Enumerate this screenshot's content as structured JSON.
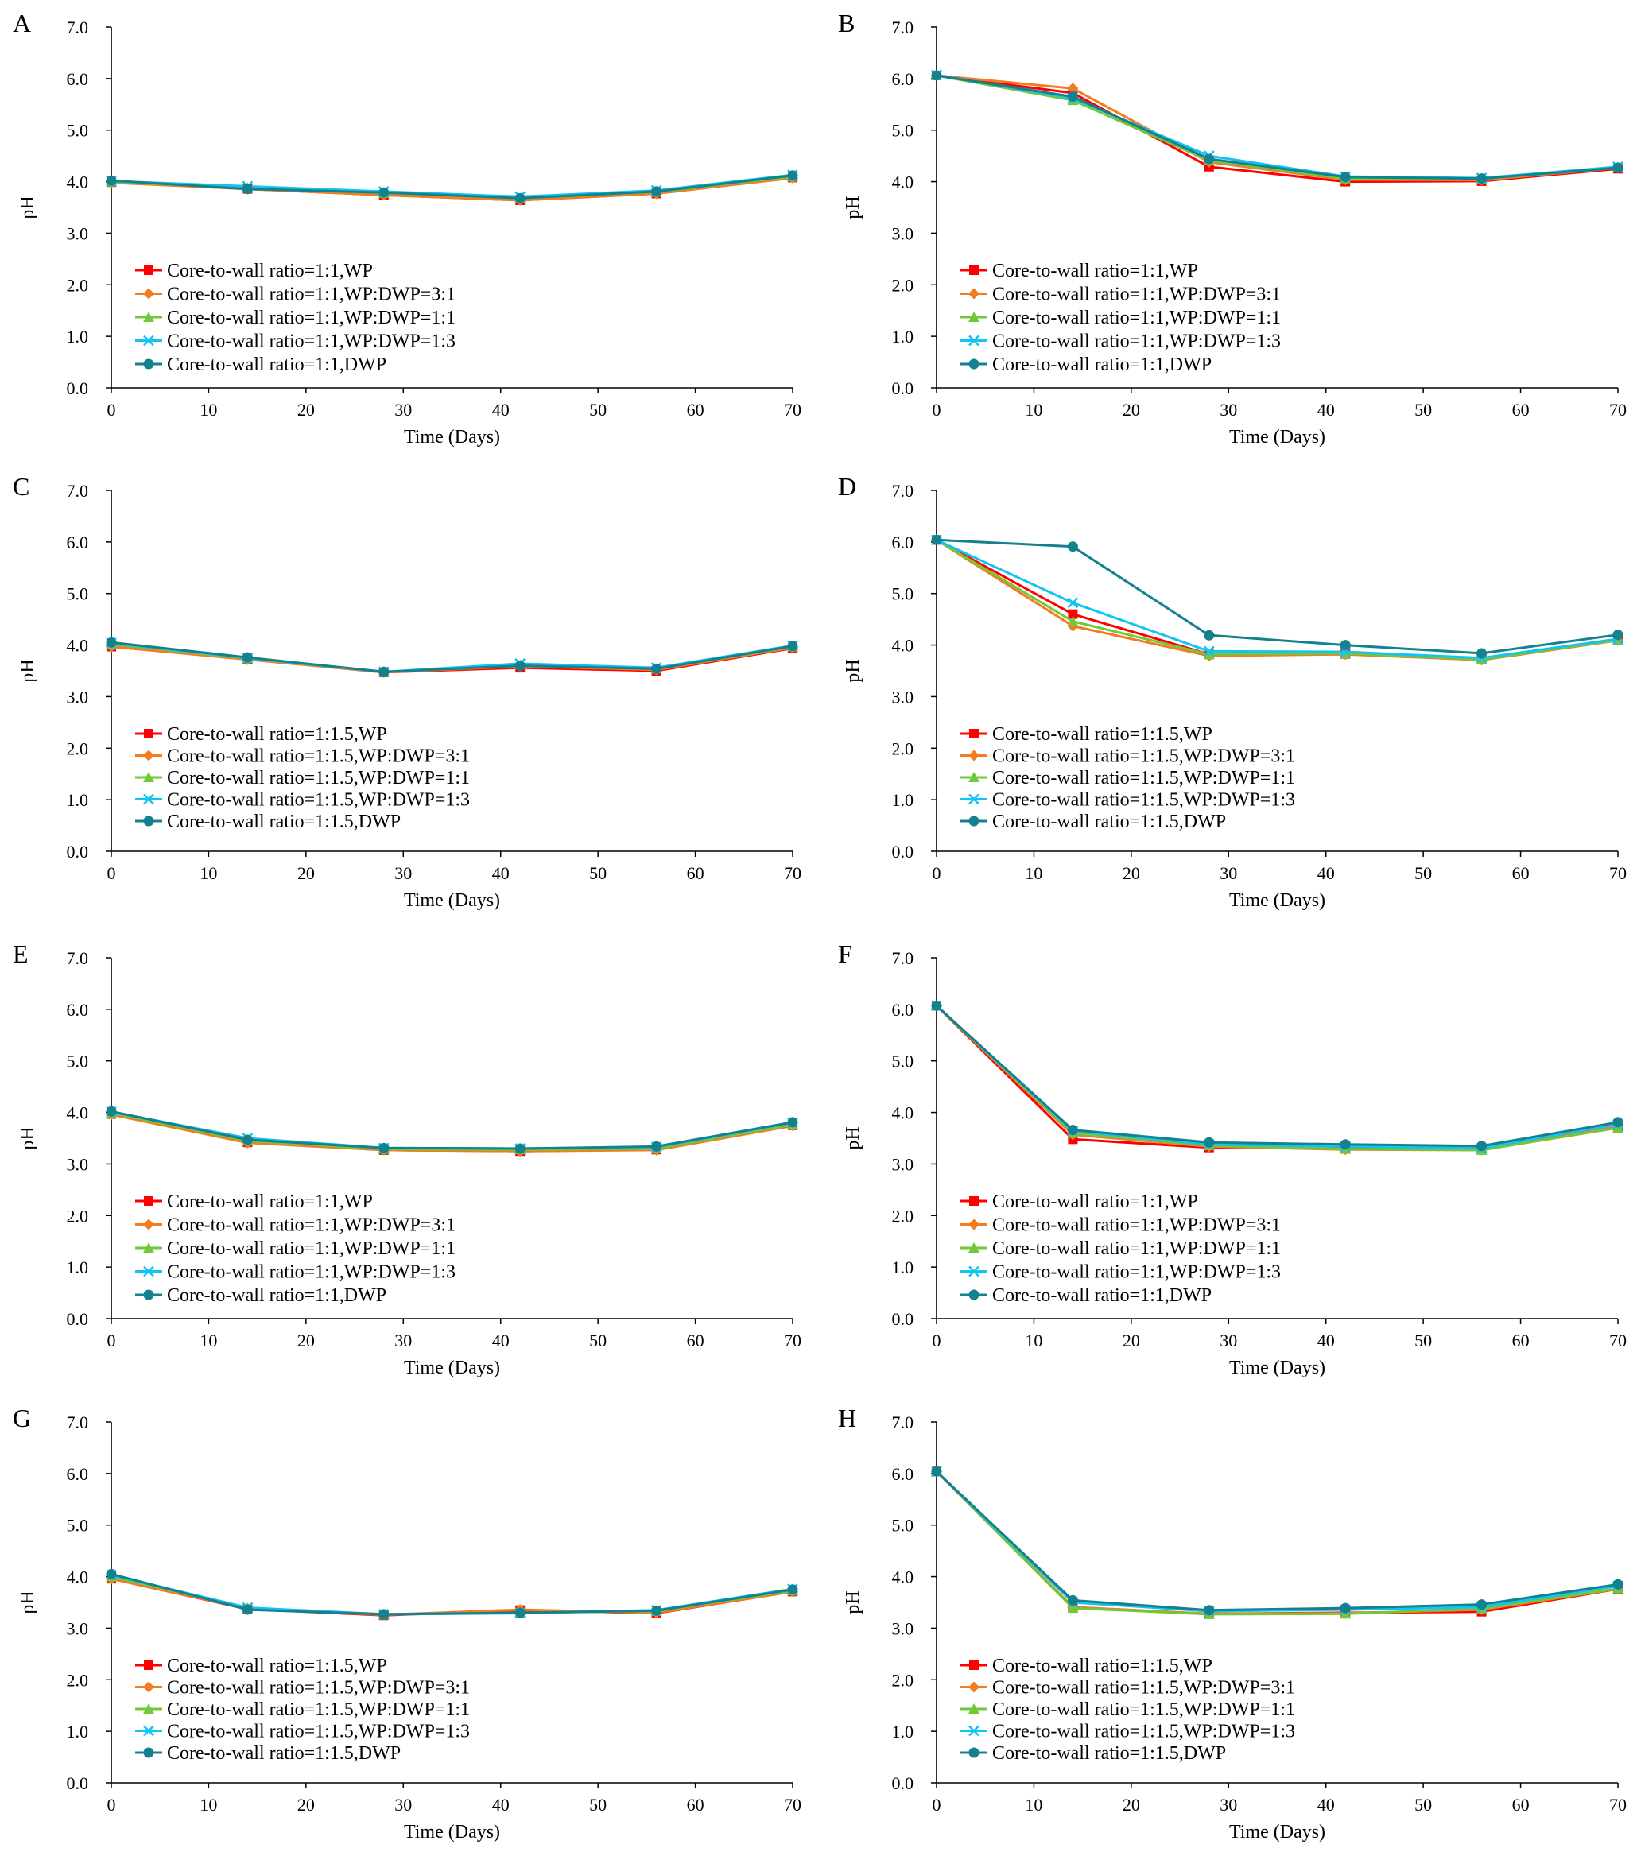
{
  "figure": {
    "series_colors": [
      "#FF0000",
      "#F47C20",
      "#71C838",
      "#12C3F3",
      "#14818E"
    ],
    "marker_shapes": [
      "square",
      "diamond",
      "triangle",
      "x",
      "circle"
    ]
  },
  "chart_data": [
    {
      "panel": "A",
      "type": "line",
      "xlabel": "Time (Days)",
      "ylabel": "pH",
      "x": [
        0,
        14,
        28,
        42,
        56,
        70
      ],
      "xlim": [
        0,
        70
      ],
      "ylim": [
        0,
        7
      ],
      "xticks": [
        "0",
        "10",
        "20",
        "30",
        "40",
        "50",
        "60",
        "70"
      ],
      "yticks": [
        "0.0",
        "1.0",
        "2.0",
        "3.0",
        "4.0",
        "5.0",
        "6.0",
        "7.0"
      ],
      "legend_position": "lower-left",
      "series": [
        {
          "name": "Core-to-wall ratio=1:1,WP",
          "values": [
            3.99,
            3.86,
            3.74,
            3.64,
            3.77,
            4.08
          ]
        },
        {
          "name": "Core-to-wall ratio=1:1,WP:DWP=3:1",
          "values": [
            3.98,
            3.86,
            3.74,
            3.64,
            3.77,
            4.07
          ]
        },
        {
          "name": "Core-to-wall ratio=1:1,WP:DWP=1:1",
          "values": [
            4.0,
            3.88,
            3.78,
            3.68,
            3.8,
            4.1
          ]
        },
        {
          "name": "Core-to-wall ratio=1:1,WP:DWP=1:3",
          "values": [
            4.01,
            3.91,
            3.81,
            3.71,
            3.83,
            4.13
          ]
        },
        {
          "name": "Core-to-wall ratio=1:1,DWP",
          "values": [
            4.02,
            3.86,
            3.79,
            3.68,
            3.81,
            4.12
          ]
        }
      ]
    },
    {
      "panel": "B",
      "type": "line",
      "xlabel": "Time (Days)",
      "ylabel": "pH",
      "x": [
        0,
        14,
        28,
        42,
        56,
        70
      ],
      "xlim": [
        0,
        70
      ],
      "ylim": [
        0,
        7
      ],
      "xticks": [
        "0",
        "10",
        "20",
        "30",
        "40",
        "50",
        "60",
        "70"
      ],
      "yticks": [
        "0.0",
        "1.0",
        "2.0",
        "3.0",
        "4.0",
        "5.0",
        "6.0",
        "7.0"
      ],
      "legend_position": "lower-left",
      "series": [
        {
          "name": "Core-to-wall ratio=1:1,WP",
          "values": [
            6.06,
            5.72,
            4.29,
            4.0,
            4.01,
            4.25
          ]
        },
        {
          "name": "Core-to-wall ratio=1:1,WP:DWP=3:1",
          "values": [
            6.06,
            5.81,
            4.38,
            4.04,
            4.03,
            4.27
          ]
        },
        {
          "name": "Core-to-wall ratio=1:1,WP:DWP=1:1",
          "values": [
            6.06,
            5.58,
            4.41,
            4.06,
            4.05,
            4.27
          ]
        },
        {
          "name": "Core-to-wall ratio=1:1,WP:DWP=1:3",
          "values": [
            6.07,
            5.62,
            4.5,
            4.1,
            4.07,
            4.29
          ]
        },
        {
          "name": "Core-to-wall ratio=1:1,DWP",
          "values": [
            6.06,
            5.65,
            4.44,
            4.09,
            4.06,
            4.27
          ]
        }
      ]
    },
    {
      "panel": "C",
      "type": "line",
      "xlabel": "Time (Days)",
      "ylabel": "pH",
      "x": [
        0,
        14,
        28,
        42,
        56,
        70
      ],
      "xlim": [
        0,
        70
      ],
      "ylim": [
        0,
        7
      ],
      "xticks": [
        "0",
        "10",
        "20",
        "30",
        "40",
        "50",
        "60",
        "70"
      ],
      "yticks": [
        "0.0",
        "1.0",
        "2.0",
        "3.0",
        "4.0",
        "5.0",
        "6.0",
        "7.0"
      ],
      "legend_position": "lower-left",
      "series": [
        {
          "name": "Core-to-wall ratio=1:1.5,WP",
          "values": [
            3.97,
            3.73,
            3.47,
            3.56,
            3.5,
            3.94
          ]
        },
        {
          "name": "Core-to-wall ratio=1:1.5,WP:DWP=3:1",
          "values": [
            3.97,
            3.72,
            3.47,
            3.59,
            3.52,
            3.95
          ]
        },
        {
          "name": "Core-to-wall ratio=1:1.5,WP:DWP=1:1",
          "values": [
            4.02,
            3.74,
            3.48,
            3.62,
            3.54,
            3.97
          ]
        },
        {
          "name": "Core-to-wall ratio=1:1.5,WP:DWP=1:3",
          "values": [
            4.04,
            3.75,
            3.48,
            3.64,
            3.56,
            3.99
          ]
        },
        {
          "name": "Core-to-wall ratio=1:1.5,DWP",
          "values": [
            4.05,
            3.76,
            3.48,
            3.6,
            3.54,
            3.98
          ]
        }
      ]
    },
    {
      "panel": "D",
      "type": "line",
      "xlabel": "Time (Days)",
      "ylabel": "pH",
      "x": [
        0,
        14,
        28,
        42,
        56,
        70
      ],
      "xlim": [
        0,
        70
      ],
      "ylim": [
        0,
        7
      ],
      "xticks": [
        "0",
        "10",
        "20",
        "30",
        "40",
        "50",
        "60",
        "70"
      ],
      "yticks": [
        "0.0",
        "1.0",
        "2.0",
        "3.0",
        "4.0",
        "5.0",
        "6.0",
        "7.0"
      ],
      "legend_position": "lower-left",
      "series": [
        {
          "name": "Core-to-wall ratio=1:1.5,WP",
          "values": [
            6.04,
            4.6,
            3.82,
            3.83,
            3.72,
            4.1
          ]
        },
        {
          "name": "Core-to-wall ratio=1:1.5,WP:DWP=3:1",
          "values": [
            6.04,
            4.37,
            3.79,
            3.82,
            3.71,
            4.09
          ]
        },
        {
          "name": "Core-to-wall ratio=1:1.5,WP:DWP=1:1",
          "values": [
            6.04,
            4.46,
            3.82,
            3.84,
            3.72,
            4.1
          ]
        },
        {
          "name": "Core-to-wall ratio=1:1.5,WP:DWP=1:3",
          "values": [
            6.04,
            4.82,
            3.88,
            3.87,
            3.75,
            4.12
          ]
        },
        {
          "name": "Core-to-wall ratio=1:1.5,DWP",
          "values": [
            6.04,
            5.91,
            4.19,
            4.0,
            3.84,
            4.2
          ]
        }
      ]
    },
    {
      "panel": "E",
      "type": "line",
      "xlabel": "Time (Days)",
      "ylabel": "pH",
      "x": [
        0,
        14,
        28,
        42,
        56,
        70
      ],
      "xlim": [
        0,
        70
      ],
      "ylim": [
        0,
        7
      ],
      "xticks": [
        "0",
        "10",
        "20",
        "30",
        "40",
        "50",
        "60",
        "70"
      ],
      "yticks": [
        "0.0",
        "1.0",
        "2.0",
        "3.0",
        "4.0",
        "5.0",
        "6.0",
        "7.0"
      ],
      "legend_position": "lower-left",
      "series": [
        {
          "name": "Core-to-wall ratio=1:1,WP",
          "values": [
            3.97,
            3.42,
            3.27,
            3.25,
            3.28,
            3.75
          ]
        },
        {
          "name": "Core-to-wall ratio=1:1,WP:DWP=3:1",
          "values": [
            3.96,
            3.41,
            3.27,
            3.25,
            3.27,
            3.74
          ]
        },
        {
          "name": "Core-to-wall ratio=1:1,WP:DWP=1:1",
          "values": [
            3.99,
            3.45,
            3.29,
            3.28,
            3.3,
            3.77
          ]
        },
        {
          "name": "Core-to-wall ratio=1:1,WP:DWP=1:3",
          "values": [
            4.01,
            3.5,
            3.31,
            3.3,
            3.33,
            3.8
          ]
        },
        {
          "name": "Core-to-wall ratio=1:1,DWP",
          "values": [
            4.02,
            3.47,
            3.31,
            3.3,
            3.34,
            3.81
          ]
        }
      ]
    },
    {
      "panel": "F",
      "type": "line",
      "xlabel": "Time (Days)",
      "ylabel": "pH",
      "x": [
        0,
        14,
        28,
        42,
        56,
        70
      ],
      "xlim": [
        0,
        70
      ],
      "ylim": [
        0,
        7
      ],
      "xticks": [
        "0",
        "10",
        "20",
        "30",
        "40",
        "50",
        "60",
        "70"
      ],
      "yticks": [
        "0.0",
        "1.0",
        "2.0",
        "3.0",
        "4.0",
        "5.0",
        "6.0",
        "7.0"
      ],
      "legend_position": "lower-left",
      "series": [
        {
          "name": "Core-to-wall ratio=1:1,WP",
          "values": [
            6.07,
            3.48,
            3.32,
            3.3,
            3.28,
            3.72
          ]
        },
        {
          "name": "Core-to-wall ratio=1:1,WP:DWP=3:1",
          "values": [
            6.07,
            3.57,
            3.34,
            3.28,
            3.27,
            3.72
          ]
        },
        {
          "name": "Core-to-wall ratio=1:1,WP:DWP=1:1",
          "values": [
            6.07,
            3.6,
            3.36,
            3.29,
            3.27,
            3.7
          ]
        },
        {
          "name": "Core-to-wall ratio=1:1,WP:DWP=1:3",
          "values": [
            6.07,
            3.64,
            3.38,
            3.34,
            3.31,
            3.77
          ]
        },
        {
          "name": "Core-to-wall ratio=1:1,DWP",
          "values": [
            6.07,
            3.66,
            3.42,
            3.38,
            3.35,
            3.81
          ]
        }
      ]
    },
    {
      "panel": "G",
      "type": "line",
      "xlabel": "Time (Days)",
      "ylabel": "pH",
      "x": [
        0,
        14,
        28,
        42,
        56,
        70
      ],
      "xlim": [
        0,
        70
      ],
      "ylim": [
        0,
        7
      ],
      "xticks": [
        "0",
        "10",
        "20",
        "30",
        "40",
        "50",
        "60",
        "70"
      ],
      "yticks": [
        "0.0",
        "1.0",
        "2.0",
        "3.0",
        "4.0",
        "5.0",
        "6.0",
        "7.0"
      ],
      "legend_position": "lower-left",
      "series": [
        {
          "name": "Core-to-wall ratio=1:1.5,WP",
          "values": [
            3.96,
            3.37,
            3.25,
            3.35,
            3.29,
            3.71
          ]
        },
        {
          "name": "Core-to-wall ratio=1:1.5,WP:DWP=3:1",
          "values": [
            3.96,
            3.38,
            3.26,
            3.36,
            3.3,
            3.71
          ]
        },
        {
          "name": "Core-to-wall ratio=1:1.5,WP:DWP=1:1",
          "values": [
            4.0,
            3.39,
            3.27,
            3.3,
            3.33,
            3.73
          ]
        },
        {
          "name": "Core-to-wall ratio=1:1.5,WP:DWP=1:3",
          "values": [
            4.03,
            3.4,
            3.27,
            3.29,
            3.35,
            3.76
          ]
        },
        {
          "name": "Core-to-wall ratio=1:1.5,DWP",
          "values": [
            4.05,
            3.36,
            3.27,
            3.3,
            3.34,
            3.75
          ]
        }
      ]
    },
    {
      "panel": "H",
      "type": "line",
      "xlabel": "Time (Days)",
      "ylabel": "pH",
      "x": [
        0,
        14,
        28,
        42,
        56,
        70
      ],
      "xlim": [
        0,
        70
      ],
      "ylim": [
        0,
        7
      ],
      "xticks": [
        "0",
        "10",
        "20",
        "30",
        "40",
        "50",
        "60",
        "70"
      ],
      "yticks": [
        "0.0",
        "1.0",
        "2.0",
        "3.0",
        "4.0",
        "5.0",
        "6.0",
        "7.0"
      ],
      "legend_position": "lower-left",
      "series": [
        {
          "name": "Core-to-wall ratio=1:1.5,WP",
          "values": [
            6.04,
            3.4,
            3.28,
            3.3,
            3.32,
            3.76
          ]
        },
        {
          "name": "Core-to-wall ratio=1:1.5,WP:DWP=3:1",
          "values": [
            6.04,
            3.41,
            3.28,
            3.29,
            3.36,
            3.76
          ]
        },
        {
          "name": "Core-to-wall ratio=1:1.5,WP:DWP=1:1",
          "values": [
            6.04,
            3.39,
            3.27,
            3.28,
            3.38,
            3.77
          ]
        },
        {
          "name": "Core-to-wall ratio=1:1.5,WP:DWP=1:3",
          "values": [
            6.04,
            3.5,
            3.33,
            3.36,
            3.41,
            3.82
          ]
        },
        {
          "name": "Core-to-wall ratio=1:1.5,DWP",
          "values": [
            6.04,
            3.54,
            3.35,
            3.39,
            3.46,
            3.85
          ]
        }
      ]
    }
  ]
}
